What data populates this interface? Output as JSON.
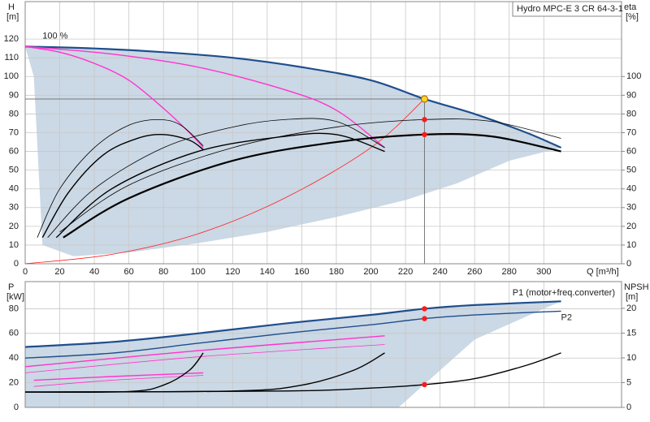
{
  "chart_data": [
    {
      "type": "line",
      "title": "Hydro MPC-E 3 CR 64-3-1",
      "ylabel": "H",
      "ylabel_unit": "[m]",
      "y2label": "eta",
      "y2label_unit": "[%]",
      "xlabel": "Q [m³/h]",
      "xlim": [
        0,
        345
      ],
      "xticks": [
        0,
        20,
        40,
        60,
        80,
        100,
        120,
        140,
        160,
        180,
        200,
        220,
        240,
        260,
        280,
        300
      ],
      "xtick_labels": true,
      "ylim": [
        0,
        140
      ],
      "yticks": [
        0,
        10,
        20,
        30,
        40,
        50,
        60,
        70,
        80,
        90,
        100,
        110,
        120
      ],
      "y2lim": [
        0,
        140
      ],
      "y2ticks": [
        0,
        10,
        20,
        30,
        40,
        50,
        60,
        70,
        80,
        90,
        100
      ],
      "grid": true,
      "annotations": [
        {
          "text": "100 %",
          "x": 10,
          "y": 119
        }
      ],
      "envelope": {
        "color": "#cbd8e5",
        "x": [
          0,
          40,
          80,
          120,
          160,
          200,
          231,
          260,
          290,
          310,
          280,
          250,
          220,
          180,
          140,
          100,
          60,
          28,
          10,
          5
        ],
        "values": [
          116,
          115,
          113,
          110,
          105,
          98,
          88,
          80,
          70,
          62,
          55,
          43,
          34,
          25,
          17,
          11,
          6,
          4,
          10,
          100
        ]
      },
      "series": [
        {
          "color": "#1f4e8c",
          "weight": "thick",
          "x": [
            0,
            40,
            80,
            120,
            160,
            200,
            231,
            260,
            290,
            310
          ],
          "values": [
            116,
            115,
            113,
            110,
            105,
            98,
            88,
            80,
            70,
            62
          ]
        },
        {
          "color": "#ff33cc",
          "weight": "medium",
          "x": [
            0,
            20,
            40,
            60,
            80,
            95,
            103
          ],
          "values": [
            116,
            113,
            107,
            98,
            83,
            70,
            62
          ]
        },
        {
          "color": "#ff33cc",
          "weight": "medium",
          "x": [
            0,
            50,
            100,
            150,
            180,
            208
          ],
          "values": [
            116,
            112,
            105,
            93,
            82,
            62
          ]
        },
        {
          "color": "#ff2020",
          "weight": "thin",
          "x": [
            0,
            50,
            100,
            150,
            200,
            231
          ],
          "values": [
            0,
            5,
            16,
            35,
            62,
            88
          ]
        },
        {
          "color": "#000000",
          "weight": "thin",
          "axis": "y2",
          "x": [
            7,
            20,
            40,
            60,
            77,
            90,
            103
          ],
          "values": [
            14,
            40,
            62,
            74,
            77,
            74,
            63
          ]
        },
        {
          "color": "#000000",
          "weight": "medium",
          "axis": "y2",
          "x": [
            10,
            25,
            45,
            65,
            80,
            95,
            103
          ],
          "values": [
            14,
            38,
            58,
            67,
            69,
            66,
            61
          ]
        },
        {
          "color": "#000000",
          "weight": "thin",
          "axis": "y2",
          "x": [
            13,
            40,
            80,
            120,
            150,
            180,
            208
          ],
          "values": [
            14,
            40,
            62,
            73,
            77,
            76,
            62
          ]
        },
        {
          "color": "#000000",
          "weight": "medium",
          "axis": "y2",
          "x": [
            18,
            50,
            100,
            150,
            180,
            208
          ],
          "values": [
            14,
            40,
            60,
            68,
            69,
            60
          ]
        },
        {
          "color": "#000000",
          "weight": "thin",
          "axis": "y2",
          "x": [
            20,
            60,
            120,
            180,
            231,
            270,
            310
          ],
          "values": [
            17,
            42,
            62,
            73,
            77,
            76,
            67
          ]
        },
        {
          "color": "#000000",
          "weight": "thick",
          "axis": "y2",
          "x": [
            22,
            60,
            120,
            180,
            231,
            270,
            310
          ],
          "values": [
            14,
            35,
            55,
            65,
            69,
            68,
            60
          ]
        }
      ],
      "points": [
        {
          "x": 231,
          "y": 88,
          "color": "#ffd21f"
        },
        {
          "x": 231,
          "y": 77,
          "color": "#ff1a1a",
          "axis": "y2"
        },
        {
          "x": 231,
          "y": 69,
          "color": "#ff1a1a",
          "axis": "y2"
        }
      ],
      "crosshair": true
    },
    {
      "type": "line",
      "ylabel": "P",
      "ylabel_unit": "[kW]",
      "y2label": "NPSH",
      "y2label_unit": "[m]",
      "xlim": [
        0,
        345
      ],
      "xticks": [
        0,
        20,
        40,
        60,
        80,
        100,
        120,
        140,
        160,
        180,
        200,
        220,
        240,
        260,
        280,
        300
      ],
      "xtick_labels": false,
      "ylim": [
        0,
        102
      ],
      "yticks": [
        0,
        20,
        40,
        60,
        80
      ],
      "y2lim": [
        0,
        25.4
      ],
      "y2ticks": [
        0,
        5,
        10,
        15,
        20
      ],
      "grid": true,
      "envelope": {
        "color": "#cbd8e5",
        "x": [
          0,
          50,
          100,
          150,
          200,
          231,
          260,
          310,
          300,
          260,
          216,
          0
        ],
        "values": [
          49,
          53,
          60,
          68,
          75,
          80,
          83,
          86,
          80,
          55,
          0,
          0
        ]
      },
      "series": [
        {
          "name": "P1 (motor+freq.converter)",
          "color": "#1f4e8c",
          "weight": "thick",
          "x": [
            0,
            50,
            100,
            150,
            200,
            231,
            260,
            310
          ],
          "values": [
            49,
            53,
            60,
            68,
            75,
            80,
            83,
            86
          ]
        },
        {
          "name": "P2",
          "color": "#1f4e8c",
          "weight": "medium",
          "x": [
            0,
            50,
            100,
            150,
            200,
            231,
            260,
            310
          ],
          "values": [
            40,
            44,
            52,
            60,
            67,
            72,
            75,
            78
          ]
        },
        {
          "color": "#ff33cc",
          "weight": "medium",
          "x": [
            0,
            100,
            208
          ],
          "values": [
            33,
            46,
            58
          ]
        },
        {
          "color": "#ff33cc",
          "weight": "thin",
          "x": [
            0,
            100,
            208
          ],
          "values": [
            28,
            41,
            51
          ]
        },
        {
          "color": "#ff33cc",
          "weight": "medium",
          "x": [
            5,
            50,
            103
          ],
          "values": [
            22,
            25,
            28
          ]
        },
        {
          "color": "#ff33cc",
          "weight": "thin",
          "x": [
            5,
            50,
            103
          ],
          "values": [
            17,
            22,
            26
          ]
        },
        {
          "color": "#000000",
          "weight": "medium",
          "axis": "y2",
          "x": [
            0,
            60,
            80,
            95,
            103
          ],
          "values": [
            3.1,
            3.2,
            4.5,
            7.5,
            11
          ]
        },
        {
          "color": "#000000",
          "weight": "medium",
          "axis": "y2",
          "x": [
            0,
            120,
            160,
            190,
            208
          ],
          "values": [
            3.1,
            3.3,
            4.5,
            7.5,
            11
          ]
        },
        {
          "color": "#000000",
          "weight": "medium",
          "axis": "y2",
          "x": [
            0,
            150,
            200,
            231,
            260,
            290,
            310
          ],
          "values": [
            3.1,
            3.3,
            3.9,
            4.6,
            5.8,
            8.5,
            11
          ]
        }
      ],
      "points": [
        {
          "x": 231,
          "y": 80,
          "color": "#ff1a1a"
        },
        {
          "x": 231,
          "y": 72,
          "color": "#ff1a1a"
        },
        {
          "x": 231,
          "y": 4.6,
          "color": "#ff1a1a",
          "axis": "y2"
        }
      ],
      "crosshair": false
    }
  ]
}
